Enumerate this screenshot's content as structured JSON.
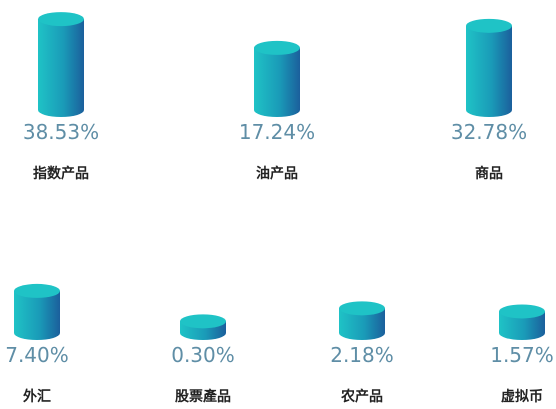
{
  "chart_data": {
    "type": "cylinder",
    "categories": [
      "指数产品",
      "油产品",
      "商品",
      "外汇",
      "股票產品",
      "农产品",
      "虚拟币"
    ],
    "values": [
      38.53,
      17.24,
      32.78,
      7.4,
      0.3,
      2.18,
      1.57
    ],
    "value_labels": [
      "38.53%",
      "17.24%",
      "32.78%",
      "7.40%",
      "0.30%",
      "2.18%",
      "1.57%"
    ],
    "color": "#1fc3c6"
  }
}
